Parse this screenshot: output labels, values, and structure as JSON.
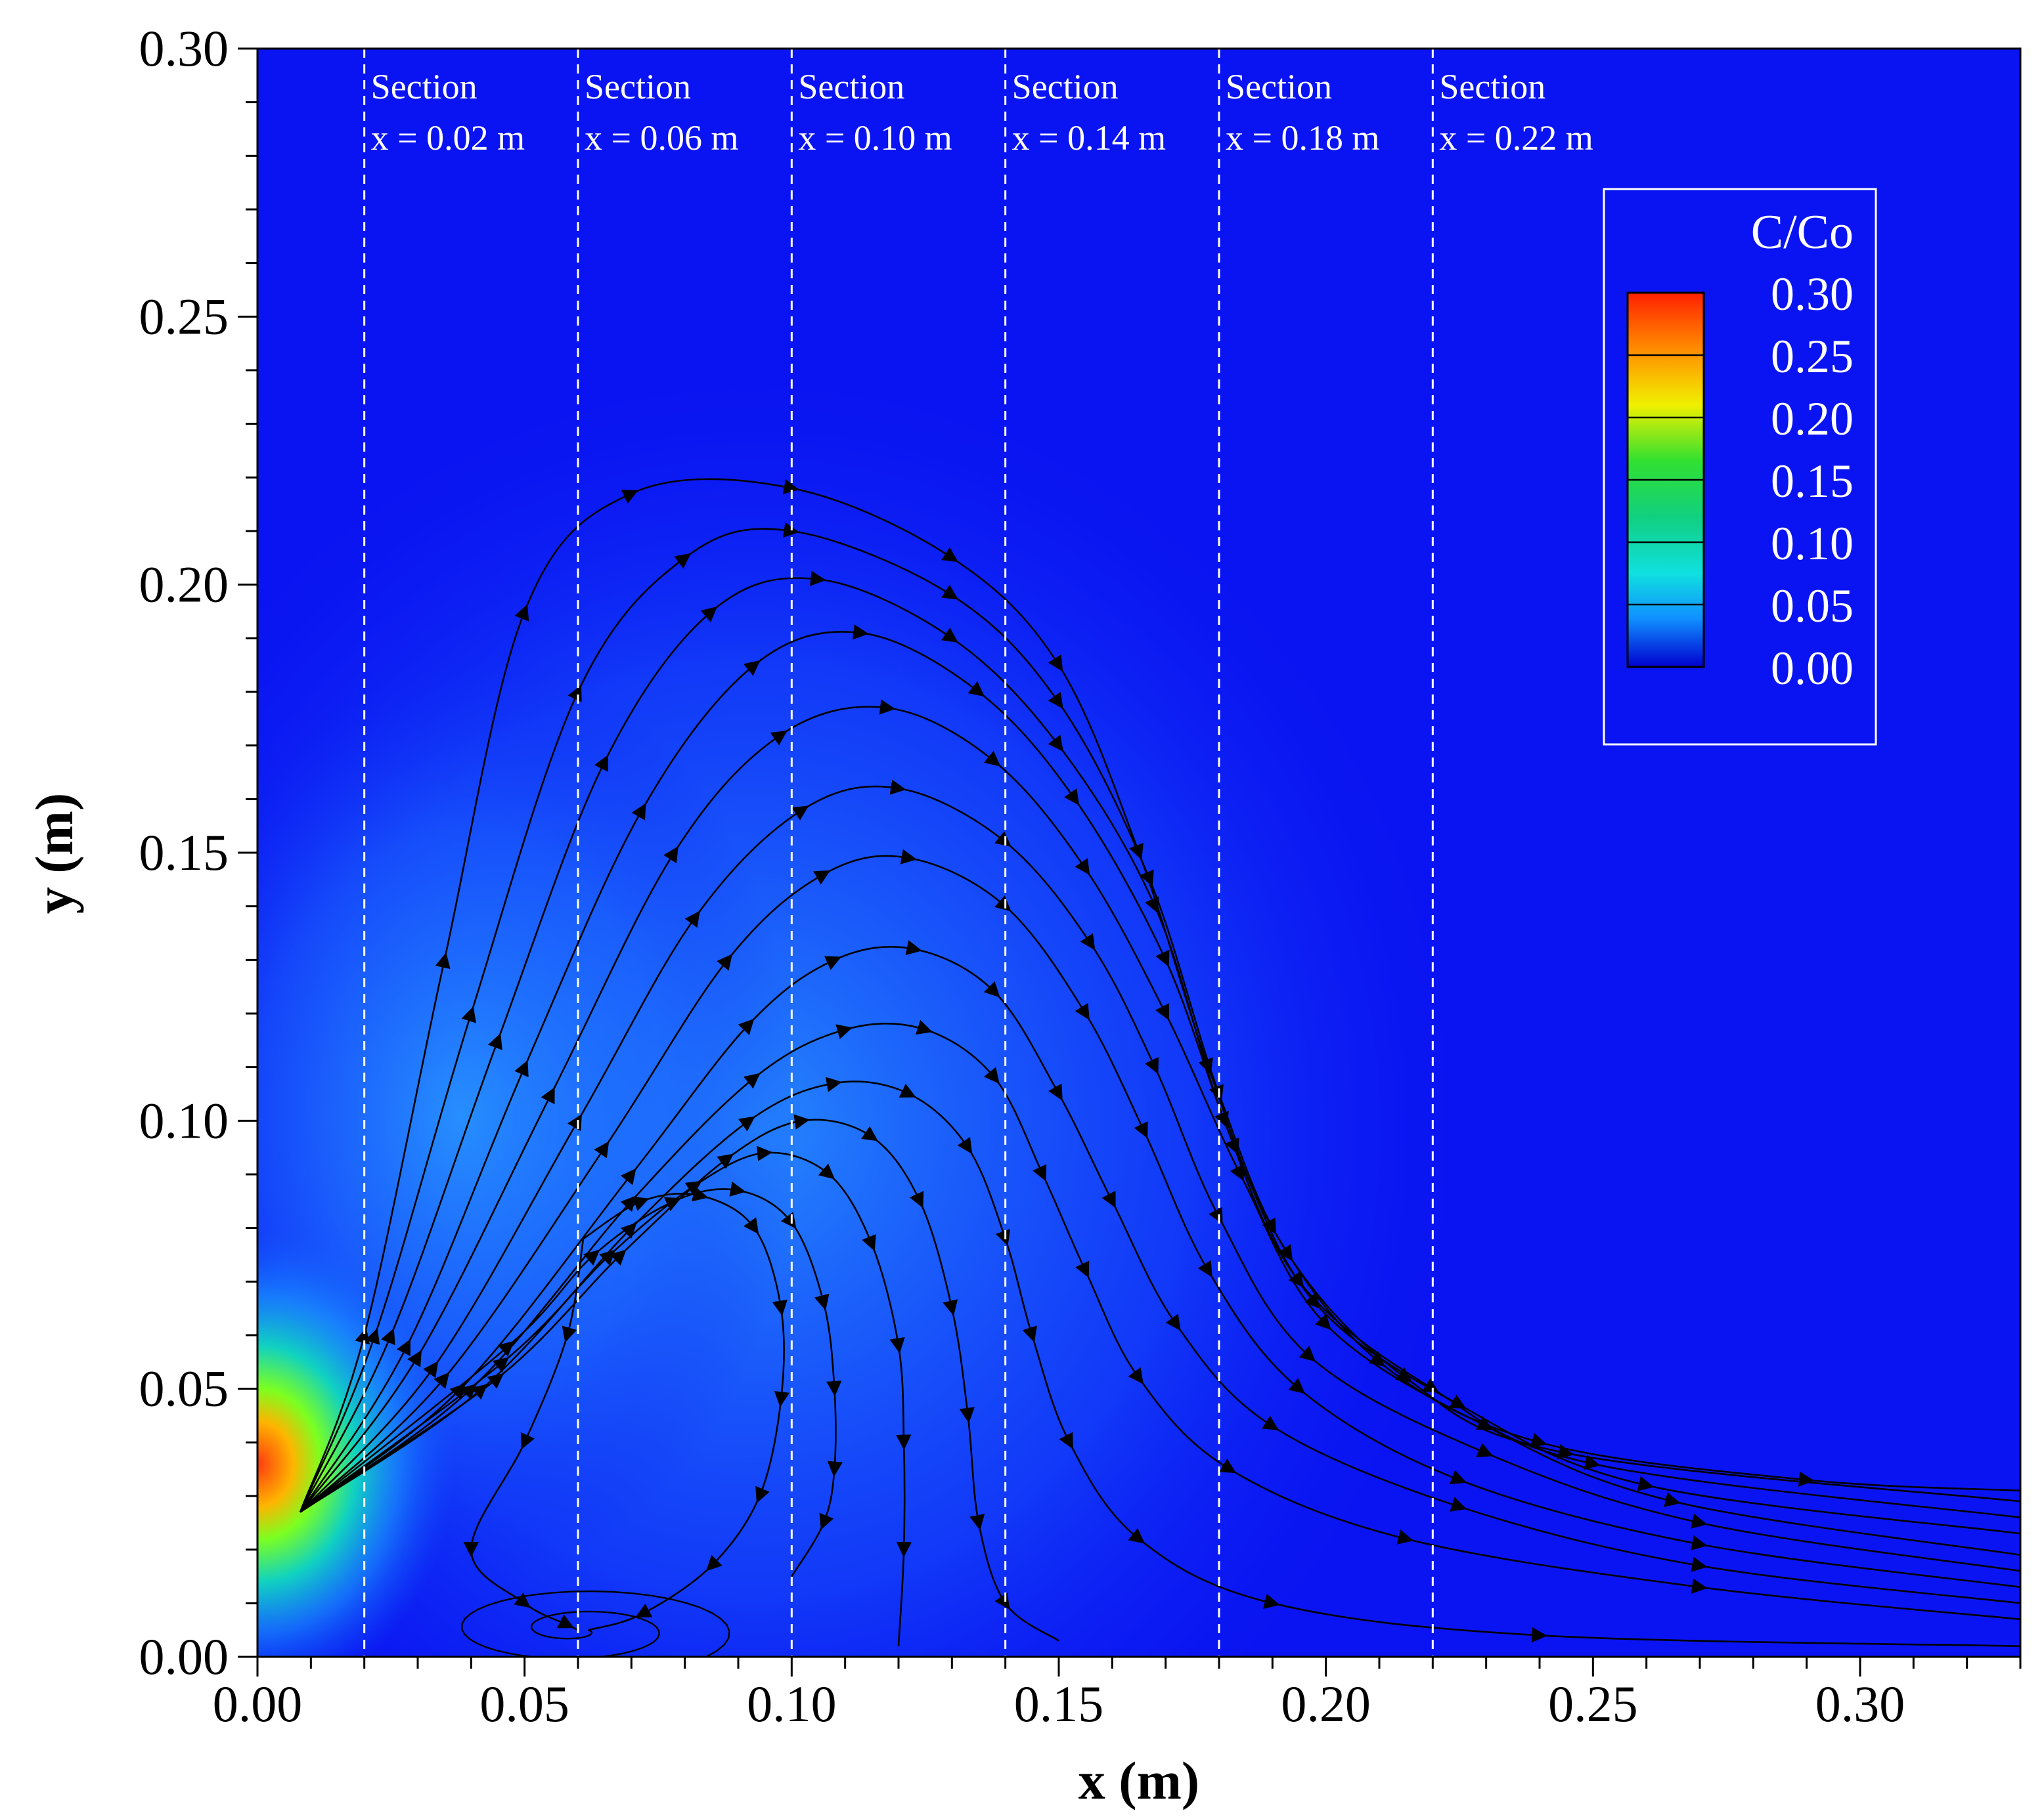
{
  "chart_data": {
    "type": "contour",
    "title": "",
    "xlabel": "x (m)",
    "ylabel": "y (m)",
    "xlim": [
      0,
      0.33
    ],
    "ylim": [
      0,
      0.3
    ],
    "x_ticks": [
      "0.00",
      "0.05",
      "0.10",
      "0.15",
      "0.20",
      "0.25",
      "0.30"
    ],
    "y_ticks": [
      "0.00",
      "0.05",
      "0.10",
      "0.15",
      "0.20",
      "0.25",
      "0.30"
    ],
    "sections": [
      {
        "x": 0.02,
        "heading": "Section",
        "label": "x = 0.02 m"
      },
      {
        "x": 0.06,
        "heading": "Section",
        "label": "x = 0.06 m"
      },
      {
        "x": 0.1,
        "heading": "Section",
        "label": "x = 0.10 m"
      },
      {
        "x": 0.14,
        "heading": "Section",
        "label": "x = 0.14 m"
      },
      {
        "x": 0.18,
        "heading": "Section",
        "label": "x = 0.18 m"
      },
      {
        "x": 0.22,
        "heading": "Section",
        "label": "x = 0.22 m"
      }
    ],
    "colorbar": {
      "title": "C/Co",
      "range": [
        0,
        0.3
      ],
      "levels": [
        "0.30",
        "0.25",
        "0.20",
        "0.15",
        "0.10",
        "0.05",
        "0.00"
      ]
    },
    "source": {
      "x": 0.0,
      "y": 0.034,
      "peak": 0.3
    },
    "streamlines": [
      {
        "name": "streamline-1",
        "points": [
          [
            0.008,
            0.027
          ],
          [
            0.02,
            0.06
          ],
          [
            0.035,
            0.13
          ],
          [
            0.05,
            0.195
          ],
          [
            0.07,
            0.217
          ],
          [
            0.1,
            0.218
          ],
          [
            0.13,
            0.205
          ],
          [
            0.15,
            0.185
          ],
          [
            0.165,
            0.15
          ],
          [
            0.178,
            0.11
          ],
          [
            0.19,
            0.08
          ],
          [
            0.21,
            0.055
          ],
          [
            0.24,
            0.04
          ],
          [
            0.29,
            0.033
          ],
          [
            0.33,
            0.031
          ]
        ]
      },
      {
        "name": "streamline-2",
        "points": [
          [
            0.008,
            0.027
          ],
          [
            0.022,
            0.06
          ],
          [
            0.04,
            0.12
          ],
          [
            0.06,
            0.18
          ],
          [
            0.08,
            0.205
          ],
          [
            0.1,
            0.21
          ],
          [
            0.13,
            0.198
          ],
          [
            0.15,
            0.178
          ],
          [
            0.167,
            0.145
          ],
          [
            0.18,
            0.105
          ],
          [
            0.193,
            0.075
          ],
          [
            0.215,
            0.052
          ],
          [
            0.245,
            0.038
          ],
          [
            0.33,
            0.029
          ]
        ]
      },
      {
        "name": "streamline-3",
        "points": [
          [
            0.008,
            0.027
          ],
          [
            0.025,
            0.06
          ],
          [
            0.045,
            0.115
          ],
          [
            0.065,
            0.167
          ],
          [
            0.085,
            0.195
          ],
          [
            0.105,
            0.201
          ],
          [
            0.13,
            0.19
          ],
          [
            0.15,
            0.17
          ],
          [
            0.168,
            0.14
          ],
          [
            0.181,
            0.1
          ],
          [
            0.195,
            0.07
          ],
          [
            0.22,
            0.05
          ],
          [
            0.25,
            0.036
          ],
          [
            0.33,
            0.026
          ]
        ]
      },
      {
        "name": "streamline-4",
        "points": [
          [
            0.008,
            0.027
          ],
          [
            0.028,
            0.058
          ],
          [
            0.05,
            0.11
          ],
          [
            0.072,
            0.158
          ],
          [
            0.093,
            0.185
          ],
          [
            0.113,
            0.191
          ],
          [
            0.135,
            0.18
          ],
          [
            0.153,
            0.16
          ],
          [
            0.17,
            0.13
          ],
          [
            0.183,
            0.095
          ],
          [
            0.198,
            0.066
          ],
          [
            0.225,
            0.047
          ],
          [
            0.26,
            0.032
          ],
          [
            0.33,
            0.023
          ]
        ]
      },
      {
        "name": "streamline-5",
        "points": [
          [
            0.008,
            0.027
          ],
          [
            0.03,
            0.056
          ],
          [
            0.055,
            0.105
          ],
          [
            0.078,
            0.15
          ],
          [
            0.098,
            0.172
          ],
          [
            0.118,
            0.177
          ],
          [
            0.138,
            0.167
          ],
          [
            0.155,
            0.147
          ],
          [
            0.17,
            0.12
          ],
          [
            0.184,
            0.09
          ],
          [
            0.2,
            0.062
          ],
          [
            0.23,
            0.043
          ],
          [
            0.265,
            0.029
          ],
          [
            0.33,
            0.019
          ]
        ]
      },
      {
        "name": "streamline-6",
        "points": [
          [
            0.008,
            0.027
          ],
          [
            0.033,
            0.054
          ],
          [
            0.06,
            0.1
          ],
          [
            0.082,
            0.138
          ],
          [
            0.102,
            0.158
          ],
          [
            0.12,
            0.162
          ],
          [
            0.14,
            0.152
          ],
          [
            0.156,
            0.133
          ],
          [
            0.168,
            0.11
          ],
          [
            0.18,
            0.082
          ],
          [
            0.197,
            0.056
          ],
          [
            0.23,
            0.038
          ],
          [
            0.27,
            0.025
          ],
          [
            0.33,
            0.016
          ]
        ]
      },
      {
        "name": "streamline-7",
        "points": [
          [
            0.008,
            0.027
          ],
          [
            0.035,
            0.052
          ],
          [
            0.065,
            0.095
          ],
          [
            0.088,
            0.13
          ],
          [
            0.106,
            0.146
          ],
          [
            0.122,
            0.149
          ],
          [
            0.14,
            0.14
          ],
          [
            0.155,
            0.12
          ],
          [
            0.166,
            0.098
          ],
          [
            0.178,
            0.072
          ],
          [
            0.195,
            0.05
          ],
          [
            0.225,
            0.033
          ],
          [
            0.27,
            0.021
          ],
          [
            0.33,
            0.013
          ]
        ]
      },
      {
        "name": "streamline-8",
        "points": [
          [
            0.008,
            0.027
          ],
          [
            0.038,
            0.05
          ],
          [
            0.07,
            0.09
          ],
          [
            0.092,
            0.118
          ],
          [
            0.108,
            0.13
          ],
          [
            0.123,
            0.132
          ],
          [
            0.138,
            0.124
          ],
          [
            0.15,
            0.105
          ],
          [
            0.16,
            0.085
          ],
          [
            0.172,
            0.062
          ],
          [
            0.19,
            0.043
          ],
          [
            0.225,
            0.028
          ],
          [
            0.27,
            0.017
          ],
          [
            0.33,
            0.01
          ]
        ]
      },
      {
        "name": "streamline-9",
        "points": [
          [
            0.008,
            0.027
          ],
          [
            0.04,
            0.05
          ],
          [
            0.07,
            0.085
          ],
          [
            0.093,
            0.108
          ],
          [
            0.11,
            0.117
          ],
          [
            0.125,
            0.117
          ],
          [
            0.138,
            0.108
          ],
          [
            0.147,
            0.09
          ],
          [
            0.155,
            0.072
          ],
          [
            0.165,
            0.052
          ],
          [
            0.182,
            0.035
          ],
          [
            0.215,
            0.022
          ],
          [
            0.27,
            0.013
          ],
          [
            0.33,
            0.007
          ]
        ]
      },
      {
        "name": "streamline-10",
        "points": [
          [
            0.008,
            0.027
          ],
          [
            0.042,
            0.05
          ],
          [
            0.07,
            0.08
          ],
          [
            0.092,
            0.1
          ],
          [
            0.108,
            0.107
          ],
          [
            0.122,
            0.105
          ],
          [
            0.133,
            0.095
          ],
          [
            0.14,
            0.078
          ],
          [
            0.145,
            0.06
          ],
          [
            0.152,
            0.04
          ],
          [
            0.165,
            0.022
          ],
          [
            0.19,
            0.01
          ],
          [
            0.24,
            0.004
          ],
          [
            0.33,
            0.002
          ]
        ]
      },
      {
        "name": "streamline-11",
        "points": [
          [
            0.008,
            0.027
          ],
          [
            0.045,
            0.052
          ],
          [
            0.068,
            0.075
          ],
          [
            0.088,
            0.093
          ],
          [
            0.102,
            0.1
          ],
          [
            0.115,
            0.097
          ],
          [
            0.124,
            0.085
          ],
          [
            0.13,
            0.065
          ],
          [
            0.133,
            0.045
          ],
          [
            0.135,
            0.025
          ],
          [
            0.14,
            0.01
          ],
          [
            0.15,
            0.003
          ]
        ]
      },
      {
        "name": "streamline-12",
        "points": [
          [
            0.008,
            0.027
          ],
          [
            0.046,
            0.055
          ],
          [
            0.066,
            0.075
          ],
          [
            0.082,
            0.088
          ],
          [
            0.095,
            0.094
          ],
          [
            0.107,
            0.09
          ],
          [
            0.115,
            0.077
          ],
          [
            0.12,
            0.058
          ],
          [
            0.121,
            0.04
          ],
          [
            0.121,
            0.02
          ],
          [
            0.12,
            0.002
          ]
        ]
      },
      {
        "name": "streamline-13",
        "points": [
          [
            0.008,
            0.027
          ],
          [
            0.047,
            0.058
          ],
          [
            0.063,
            0.075
          ],
          [
            0.078,
            0.085
          ],
          [
            0.09,
            0.087
          ],
          [
            0.1,
            0.081
          ],
          [
            0.106,
            0.066
          ],
          [
            0.108,
            0.05
          ],
          [
            0.108,
            0.035
          ],
          [
            0.106,
            0.025
          ],
          [
            0.1,
            0.015
          ]
        ]
      },
      {
        "name": "streamline-14",
        "points": [
          [
            0.061,
            0.078
          ],
          [
            0.072,
            0.085
          ],
          [
            0.083,
            0.086
          ],
          [
            0.093,
            0.08
          ],
          [
            0.098,
            0.065
          ],
          [
            0.098,
            0.048
          ],
          [
            0.094,
            0.03
          ],
          [
            0.085,
            0.017
          ],
          [
            0.072,
            0.008
          ],
          [
            0.062,
            0.005
          ]
        ]
      },
      {
        "name": "streamline-15",
        "points": [
          [
            0.061,
            0.078
          ],
          [
            0.058,
            0.06
          ],
          [
            0.05,
            0.04
          ],
          [
            0.04,
            0.02
          ],
          [
            0.05,
            0.01
          ],
          [
            0.058,
            0.006
          ],
          [
            0.06,
            0.005
          ]
        ]
      }
    ]
  }
}
